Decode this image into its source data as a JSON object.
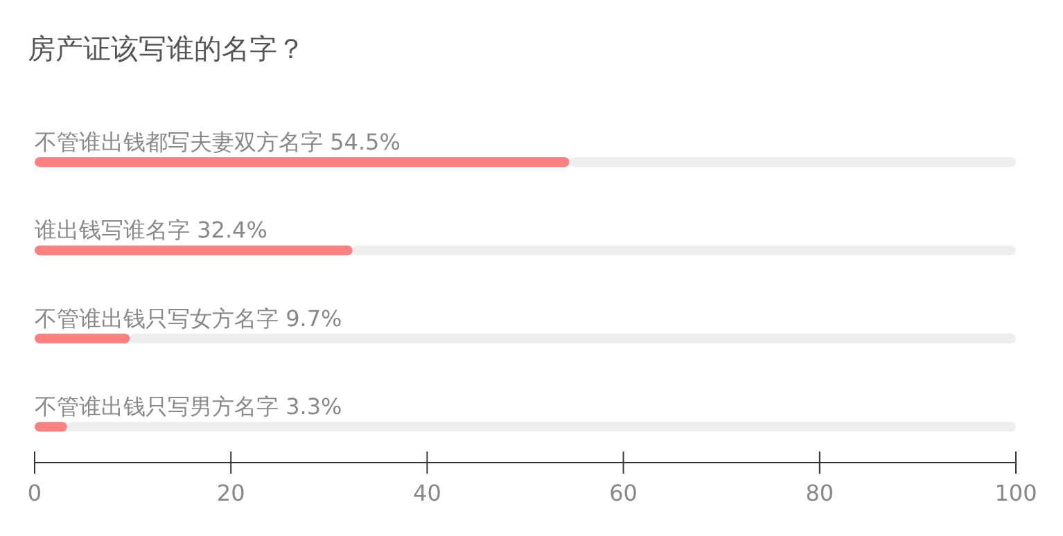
{
  "chart_data": {
    "type": "bar",
    "orientation": "horizontal",
    "stacked": true,
    "title": "房产证该写谁的名字？",
    "categories": [
      "不管谁出钱都写夫妻双方名字 54.5%",
      "谁出钱写谁名字 32.4%",
      "不管谁出钱只写女方名字 9.7%",
      "不管谁出钱只写男方名字 3.3%"
    ],
    "series": [
      {
        "color": "#ff8080",
        "values": [
          54.5,
          32.4,
          9.7,
          3.3
        ]
      },
      {
        "color": "#eeeeee",
        "values": [
          45.5,
          67.6,
          90.3,
          96.7
        ]
      }
    ],
    "xlim": [
      0,
      100
    ],
    "xticks": [
      0,
      20,
      40,
      60,
      80,
      100
    ],
    "grid": false
  }
}
